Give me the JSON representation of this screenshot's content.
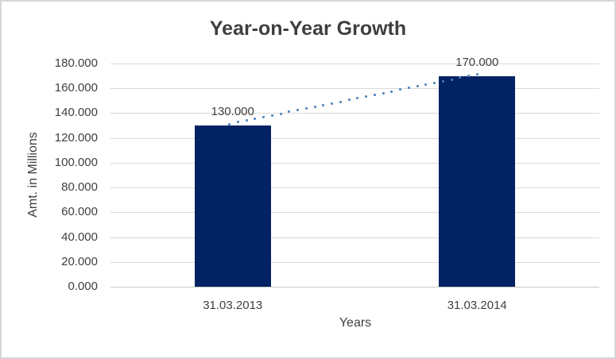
{
  "window": {
    "background": "#ffffff",
    "border_color": "#d6d6d6"
  },
  "chart_data": {
    "type": "bar",
    "title": "Year-on-Year Growth",
    "categories": [
      "31.03.2013",
      "31.03.2014"
    ],
    "values": [
      130,
      170
    ],
    "value_labels": [
      "130.000",
      "170.000"
    ],
    "xlabel": "Years",
    "ylabel": "Amt. in Millions",
    "ylim": [
      0,
      180
    ],
    "ytick_step": 20,
    "ytick_labels": [
      "180.000",
      "160.000",
      "140.000",
      "120.000",
      "100.000",
      "80.000",
      "60.000",
      "40.000",
      "20.000",
      "0.000"
    ],
    "grid": true,
    "legend_position": "none",
    "bar_color": "#032263",
    "gridline_color": "#d9d9d9",
    "axis_line_color": "#c9c9c9",
    "text_color": "#404040",
    "title_color": "#3f3f3f",
    "trendline": {
      "type": "linear",
      "style": "dotted",
      "color": "#4a7ebb",
      "from_value": 130,
      "to_value": 170
    }
  }
}
